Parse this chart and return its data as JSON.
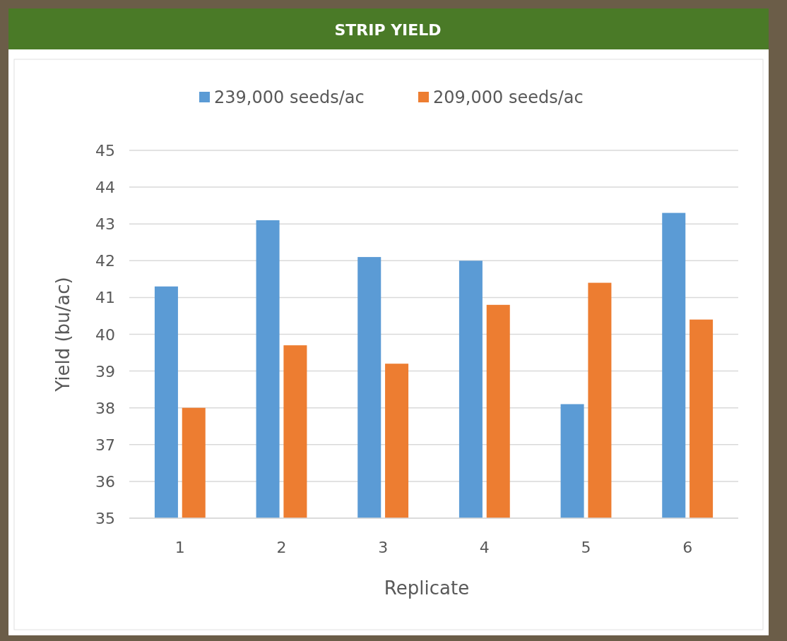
{
  "chart_data": {
    "type": "bar",
    "title": "STRIP YIELD",
    "xlabel": "Replicate",
    "ylabel": "Yield (bu/ac)",
    "categories": [
      "1",
      "2",
      "3",
      "4",
      "5",
      "6"
    ],
    "series": [
      {
        "name": "239,000 seeds/ac",
        "color": "#5b9bd5",
        "values": [
          41.3,
          43.1,
          42.1,
          42.0,
          38.1,
          43.3
        ]
      },
      {
        "name": "209,000 seeds/ac",
        "color": "#ed7d31",
        "values": [
          38.0,
          39.7,
          39.2,
          40.8,
          41.4,
          40.4
        ]
      }
    ],
    "ylim": [
      35,
      45
    ],
    "yticks": [
      35,
      36,
      37,
      38,
      39,
      40,
      41,
      42,
      43,
      44,
      45
    ],
    "grid": "y",
    "legend": "top"
  }
}
